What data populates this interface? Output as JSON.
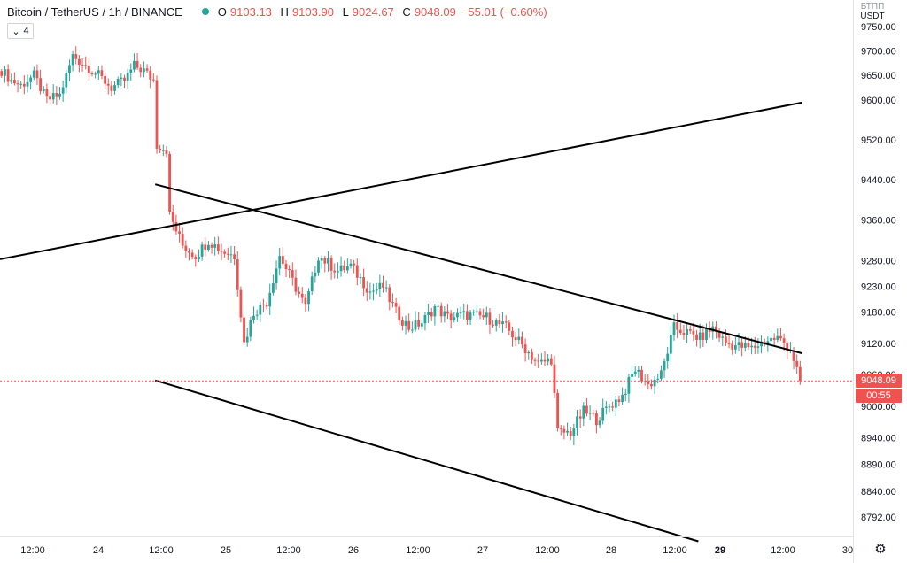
{
  "legend": {
    "symbol": "Bitcoin / TetherUS",
    "interval": "1h",
    "exchange": "BINANCE",
    "open_label": "O",
    "open": "9103.13",
    "high_label": "H",
    "high": "9103.90",
    "low_label": "L",
    "low": "9024.67",
    "close_label": "C",
    "close": "9048.09",
    "change": "−55.01 (−0.60%)",
    "status_color": "#26a69a"
  },
  "indicator_toggle": {
    "count": "4"
  },
  "price_axis": {
    "currency_unit": "USDT",
    "currency_top": "БТПП",
    "last_price": "9048.09",
    "countdown": "00:55"
  },
  "colors": {
    "up": "#26a69a",
    "down": "#ef5350",
    "trendline": "#000000"
  },
  "settings": {
    "icon": "gear-icon",
    "glyph": "⚙"
  },
  "chart_data": {
    "type": "candlestick",
    "scale": "log",
    "y_ticks": [
      9750,
      9700,
      9650,
      9600,
      9520,
      9440,
      9360,
      9280,
      9230,
      9180,
      9120,
      9060,
      9000,
      8940,
      8890,
      8840,
      8792
    ],
    "x_ticks": [
      "12:00",
      "24",
      "12:00",
      "25",
      "12:00",
      "26",
      "12:00",
      "27",
      "12:00",
      "28",
      "12:00",
      "29",
      "12:00",
      "30"
    ],
    "x_ticks_bold": [
      "29"
    ],
    "last_price": 9048.09,
    "ohlc_path": [
      [
        0,
        9660
      ],
      [
        3,
        9640
      ],
      [
        6,
        9630
      ],
      [
        10,
        9650
      ],
      [
        14,
        9600
      ],
      [
        18,
        9610
      ],
      [
        22,
        9690
      ],
      [
        26,
        9670
      ],
      [
        30,
        9650
      ],
      [
        34,
        9625
      ],
      [
        38,
        9640
      ],
      [
        41,
        9670
      ],
      [
        44,
        9660
      ],
      [
        47,
        9640
      ],
      [
        48,
        9510
      ],
      [
        51,
        9500
      ],
      [
        52,
        9370
      ],
      [
        56,
        9310
      ],
      [
        60,
        9290
      ],
      [
        64,
        9320
      ],
      [
        68,
        9300
      ],
      [
        72,
        9290
      ],
      [
        75,
        9120
      ],
      [
        78,
        9180
      ],
      [
        82,
        9200
      ],
      [
        86,
        9290
      ],
      [
        90,
        9240
      ],
      [
        94,
        9190
      ],
      [
        98,
        9290
      ],
      [
        104,
        9260
      ],
      [
        108,
        9270
      ],
      [
        114,
        9220
      ],
      [
        118,
        9230
      ],
      [
        122,
        9180
      ],
      [
        126,
        9150
      ],
      [
        130,
        9160
      ],
      [
        134,
        9190
      ],
      [
        138,
        9170
      ],
      [
        144,
        9175
      ],
      [
        150,
        9170
      ],
      [
        156,
        9150
      ],
      [
        162,
        9110
      ],
      [
        166,
        9080
      ],
      [
        170,
        9090
      ],
      [
        172,
        8950
      ],
      [
        176,
        8950
      ],
      [
        180,
        8990
      ],
      [
        184,
        8975
      ],
      [
        188,
        9000
      ],
      [
        192,
        9020
      ],
      [
        196,
        9070
      ],
      [
        200,
        9040
      ],
      [
        204,
        9060
      ],
      [
        208,
        9150
      ],
      [
        212,
        9140
      ],
      [
        216,
        9130
      ],
      [
        220,
        9150
      ],
      [
        224,
        9120
      ],
      [
        228,
        9115
      ],
      [
        232,
        9110
      ],
      [
        236,
        9125
      ],
      [
        240,
        9130
      ],
      [
        244,
        9110
      ],
      [
        247,
        9048.09
      ]
    ],
    "trendlines": [
      {
        "name": "rising",
        "from": [
          0,
          9283
        ],
        "to": [
          248,
          9595
        ]
      },
      {
        "name": "upper",
        "from": [
          48,
          9431
        ],
        "to": [
          248,
          9101
        ]
      },
      {
        "name": "lower",
        "from": [
          48,
          9049
        ],
        "to": [
          216,
          8747
        ]
      }
    ]
  }
}
